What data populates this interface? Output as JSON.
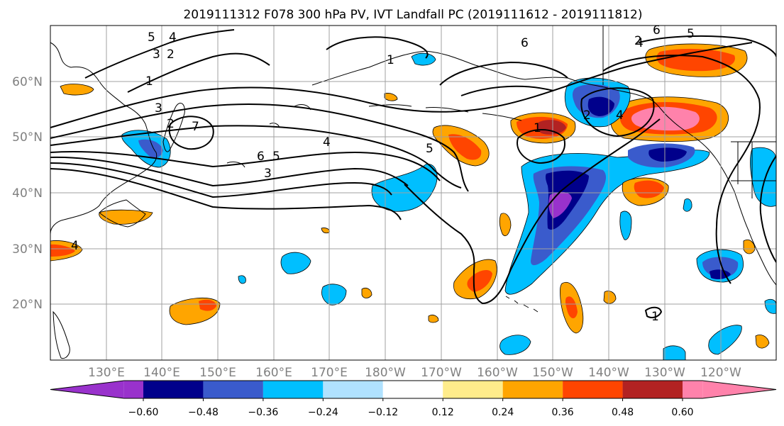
{
  "title": "2019111312 F078 300 hPa PV, IVT Landfall PC (2019111612 - 2019111812)",
  "lat_labels": [
    "60°N",
    "50°N",
    "40°N",
    "30°N",
    "20°N"
  ],
  "lon_labels": [
    "130°E",
    "140°E",
    "150°E",
    "160°E",
    "170°E",
    "180°W",
    "170°W",
    "160°W",
    "150°W",
    "140°W",
    "130°W",
    "120°W"
  ],
  "colorbar": {
    "colors": [
      "#9932cc",
      "#00008b",
      "#3a5bcc",
      "#00bfff",
      "#b0e2ff",
      "#ffffff",
      "#ffec8b",
      "#ffa500",
      "#ff4500",
      "#b22222",
      "#ff82ab"
    ],
    "tick_labels": [
      "−0.60",
      "−0.48",
      "−0.36",
      "−0.24",
      "−0.12",
      "0.12",
      "0.24",
      "0.36",
      "0.48",
      "0.60"
    ]
  },
  "contour_labels": [
    "5",
    "4",
    "3",
    "2",
    "1",
    "1",
    "3",
    "2",
    "7",
    "6",
    "5",
    "4",
    "3",
    "5",
    "6",
    "2",
    "1",
    "4",
    "2",
    "4",
    "6",
    "5",
    "4",
    "1"
  ]
}
